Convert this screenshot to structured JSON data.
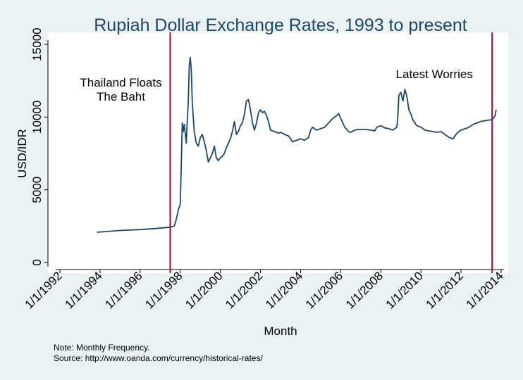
{
  "chart_data": {
    "type": "line",
    "title": "Rupiah Dollar Exchange Rates, 1993 to present",
    "xlabel": "Month",
    "ylabel": "USD/IDR",
    "xlim": [
      1992,
      2014
    ],
    "ylim": [
      0,
      15000
    ],
    "x_ticks": [
      {
        "value": 1992,
        "label": "1/1/1992"
      },
      {
        "value": 1994,
        "label": "1/1/1994"
      },
      {
        "value": 1996,
        "label": "1/1/1996"
      },
      {
        "value": 1998,
        "label": "1/1/1998"
      },
      {
        "value": 2000,
        "label": "1/1/2000"
      },
      {
        "value": 2002,
        "label": "1/1/2002"
      },
      {
        "value": 2004,
        "label": "1/1/2004"
      },
      {
        "value": 2006,
        "label": "1/1/2006"
      },
      {
        "value": 2008,
        "label": "1/1/2008"
      },
      {
        "value": 2010,
        "label": "1/1/2010"
      },
      {
        "value": 2012,
        "label": "1/1/2012"
      },
      {
        "value": 2014,
        "label": "1/1/2014"
      }
    ],
    "y_ticks": [
      {
        "value": 0,
        "label": "0"
      },
      {
        "value": 5000,
        "label": "5000"
      },
      {
        "value": 10000,
        "label": "10000"
      },
      {
        "value": 15000,
        "label": "15000"
      }
    ],
    "grid": false,
    "series": [
      {
        "name": "USD/IDR",
        "color": "#1a476f",
        "x": [
          1993.85,
          1994.5,
          1995.0,
          1995.5,
          1996.0,
          1996.5,
          1997.0,
          1997.5,
          1997.7,
          1997.8,
          1997.9,
          1998.0,
          1998.05,
          1998.1,
          1998.15,
          1998.2,
          1998.3,
          1998.35,
          1998.4,
          1998.45,
          1998.5,
          1998.55,
          1998.6,
          1998.7,
          1998.8,
          1998.9,
          1999.0,
          1999.1,
          1999.2,
          1999.3,
          1999.4,
          1999.5,
          1999.6,
          1999.7,
          1999.8,
          1999.9,
          2000.0,
          2000.1,
          2000.2,
          2000.3,
          2000.5,
          2000.6,
          2000.7,
          2000.8,
          2000.9,
          2001.0,
          2001.1,
          2001.2,
          2001.3,
          2001.4,
          2001.5,
          2001.6,
          2001.7,
          2001.8,
          2001.9,
          2002.0,
          2002.1,
          2002.2,
          2002.3,
          2002.4,
          2002.5,
          2002.7,
          2002.9,
          2003.0,
          2003.2,
          2003.4,
          2003.5,
          2003.6,
          2003.8,
          2004.0,
          2004.2,
          2004.4,
          2004.5,
          2004.6,
          2004.8,
          2005.0,
          2005.2,
          2005.4,
          2005.6,
          2005.8,
          2005.9,
          2006.0,
          2006.2,
          2006.4,
          2006.5,
          2006.7,
          2006.9,
          2007.2,
          2007.5,
          2007.7,
          2007.8,
          2008.0,
          2008.2,
          2008.4,
          2008.6,
          2008.8,
          2008.85,
          2008.9,
          2009.0,
          2009.1,
          2009.2,
          2009.3,
          2009.4,
          2009.5,
          2009.6,
          2009.8,
          2010.0,
          2010.2,
          2010.4,
          2010.6,
          2010.8,
          2011.0,
          2011.2,
          2011.4,
          2011.6,
          2011.8,
          2012.0,
          2012.2,
          2012.4,
          2012.6,
          2012.8,
          2013.0,
          2013.2,
          2013.4,
          2013.5,
          2013.6,
          2013.7,
          2013.75
        ],
        "values": [
          2080,
          2150,
          2200,
          2230,
          2260,
          2310,
          2360,
          2430,
          2500,
          2950,
          3600,
          4000,
          6500,
          9600,
          9000,
          9500,
          8200,
          9800,
          11000,
          13500,
          14100,
          13200,
          11000,
          9000,
          8200,
          8000,
          8600,
          8800,
          8300,
          7700,
          6900,
          7200,
          7500,
          8000,
          7200,
          7000,
          7200,
          7300,
          7500,
          7900,
          8500,
          9000,
          9700,
          8800,
          9000,
          9400,
          9600,
          10200,
          11100,
          11200,
          10500,
          9600,
          9100,
          9600,
          10300,
          10500,
          10300,
          10400,
          10100,
          9700,
          9100,
          9000,
          8900,
          8950,
          8800,
          8700,
          8500,
          8300,
          8400,
          8500,
          8400,
          8600,
          9100,
          9300,
          9100,
          9200,
          9300,
          9600,
          9900,
          10100,
          10250,
          9900,
          9300,
          9000,
          8950,
          9100,
          9150,
          9150,
          9100,
          9050,
          9300,
          9400,
          9250,
          9200,
          9100,
          9300,
          10100,
          11500,
          11700,
          11100,
          11900,
          11400,
          10500,
          10200,
          9800,
          9400,
          9300,
          9100,
          9050,
          9000,
          8950,
          9000,
          8800,
          8600,
          8500,
          8900,
          9100,
          9200,
          9300,
          9500,
          9600,
          9700,
          9750,
          9800,
          9800,
          9900,
          10100,
          10500
        ]
      }
    ],
    "reference_lines": [
      {
        "x": 1997.5,
        "color": "#aa0033",
        "label_lines": [
          "Thailand Floats",
          "The Baht"
        ]
      },
      {
        "x": 2013.55,
        "color": "#aa0033",
        "label_lines": [
          "Latest Worries"
        ]
      }
    ],
    "notes": [
      "Note: Monthly Frequency.",
      "Source: http://www.oanda.com/currency/historical-rates/"
    ]
  }
}
